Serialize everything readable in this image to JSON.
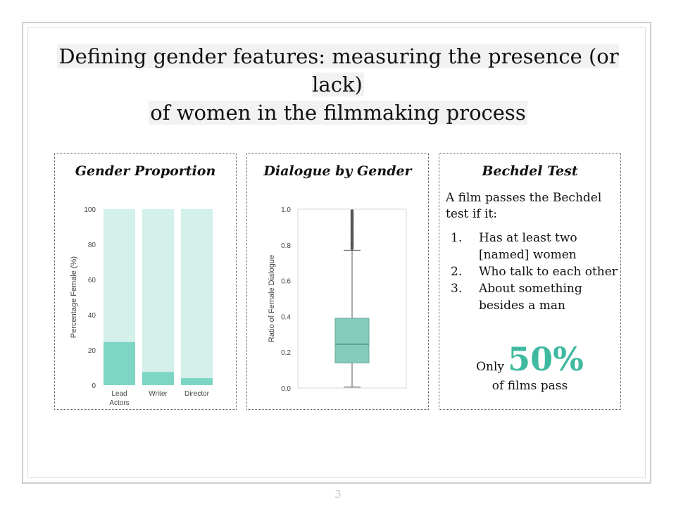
{
  "slide": {
    "title_line1": "Defining gender features: measuring the presence (or lack)",
    "title_line2": "of women in the filmmaking process",
    "page_number": "3"
  },
  "panels": {
    "gender": {
      "title": "Gender Proportion"
    },
    "dialogue": {
      "title": "Dialogue by Gender"
    },
    "bechdel": {
      "title": "Bechdel Test",
      "intro": "A film passes the Bechdel test if it:",
      "criteria": [
        {
          "num": "1.",
          "text": "Has at least two [named] women"
        },
        {
          "num": "2.",
          "text": "Who talk to each other"
        },
        {
          "num": "3.",
          "text": "About something besides a man"
        }
      ],
      "only_label": "Only",
      "percent": "50%",
      "pass_label": "of films pass"
    }
  },
  "chart_data": [
    {
      "type": "bar",
      "title": "",
      "ylabel": "Percentage Female (%)",
      "categories": [
        "Lead Actors",
        "Writer",
        "Director"
      ],
      "category_lines": [
        [
          "Lead",
          "Actors"
        ],
        [
          "Writer"
        ],
        [
          "Director"
        ]
      ],
      "values": [
        24.5,
        7.5,
        4
      ],
      "ylim": [
        0,
        100
      ],
      "yticks": [
        "0",
        "20",
        "40",
        "60",
        "80",
        "100"
      ],
      "bar_color": "#7dd6c4",
      "background_bar_color": "#d3f0ea",
      "grid": false
    },
    {
      "type": "box",
      "title": "",
      "ylabel": "Ratio of Female Dialogue",
      "ylim": [
        0,
        1
      ],
      "yticks": [
        "0.0",
        "0.2",
        "0.4",
        "0.6",
        "0.8",
        "1.0"
      ],
      "box": {
        "whisker_low": 0.005,
        "q1": 0.14,
        "median": 0.245,
        "q3": 0.39,
        "whisker_high": 0.77
      },
      "outliers": [
        0.78,
        0.79,
        0.8,
        0.81,
        0.82,
        0.83,
        0.84,
        0.85,
        0.86,
        0.87,
        0.88,
        0.89,
        0.9,
        0.91,
        0.92,
        0.93,
        0.94,
        0.95,
        0.96,
        0.97,
        0.98,
        0.99
      ],
      "box_color": "#84cbbb",
      "grid": false
    }
  ]
}
